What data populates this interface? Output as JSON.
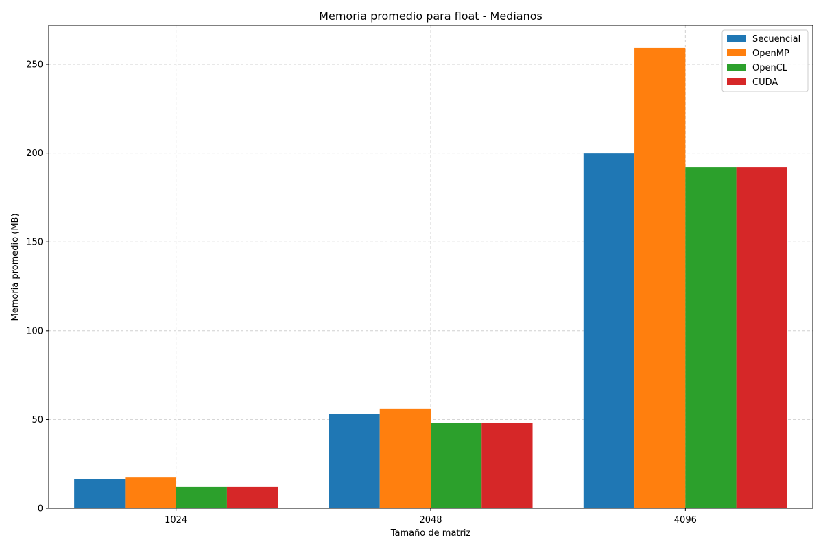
{
  "chart_data": {
    "type": "bar",
    "title": "Memoria promedio para float - Medianos",
    "xlabel": "Tamaño de matriz",
    "ylabel": "Memoria promedio (MB)",
    "categories": [
      "1024",
      "2048",
      "4096"
    ],
    "ylim": [
      0,
      272
    ],
    "yticks": [
      0,
      50,
      100,
      150,
      200,
      250
    ],
    "grid": true,
    "legend_position": "top-right",
    "series": [
      {
        "name": "Secuencial",
        "color": "#1f77b4",
        "values": [
          16.5,
          53.0,
          199.8
        ]
      },
      {
        "name": "OpenMP",
        "color": "#ff7f0e",
        "values": [
          17.3,
          56.0,
          259.3
        ]
      },
      {
        "name": "OpenCL",
        "color": "#2ca02c",
        "values": [
          12.0,
          48.2,
          192.1
        ]
      },
      {
        "name": "CUDA",
        "color": "#d62728",
        "values": [
          12.0,
          48.2,
          192.1
        ]
      }
    ]
  }
}
